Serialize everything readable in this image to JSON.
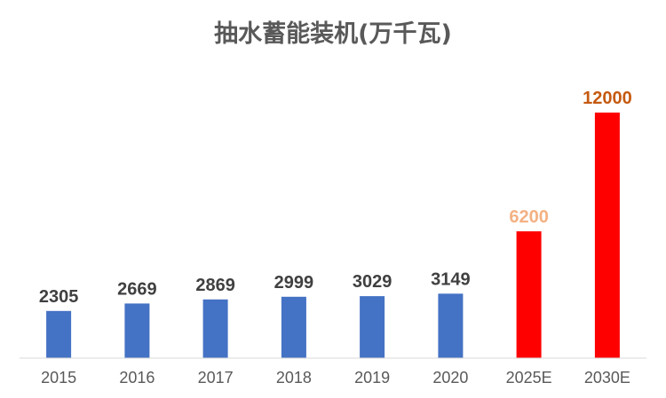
{
  "chart_data": {
    "type": "bar",
    "title": "抽水蓄能装机(万千瓦)",
    "categories": [
      "2015",
      "2016",
      "2017",
      "2018",
      "2019",
      "2020",
      "2025E",
      "2030E"
    ],
    "values": [
      2305,
      2669,
      2869,
      2999,
      3029,
      3149,
      6200,
      12000
    ],
    "bar_colors": [
      "#4472C4",
      "#4472C4",
      "#4472C4",
      "#4472C4",
      "#4472C4",
      "#4472C4",
      "#FF0000",
      "#FF0000"
    ],
    "label_colors": [
      "#404040",
      "#404040",
      "#404040",
      "#404040",
      "#404040",
      "#404040",
      "#F4B183",
      "#C55A11"
    ],
    "xlabel": "",
    "ylabel": "",
    "ylim": [
      0,
      12000
    ],
    "grid": false,
    "legend": "none"
  }
}
